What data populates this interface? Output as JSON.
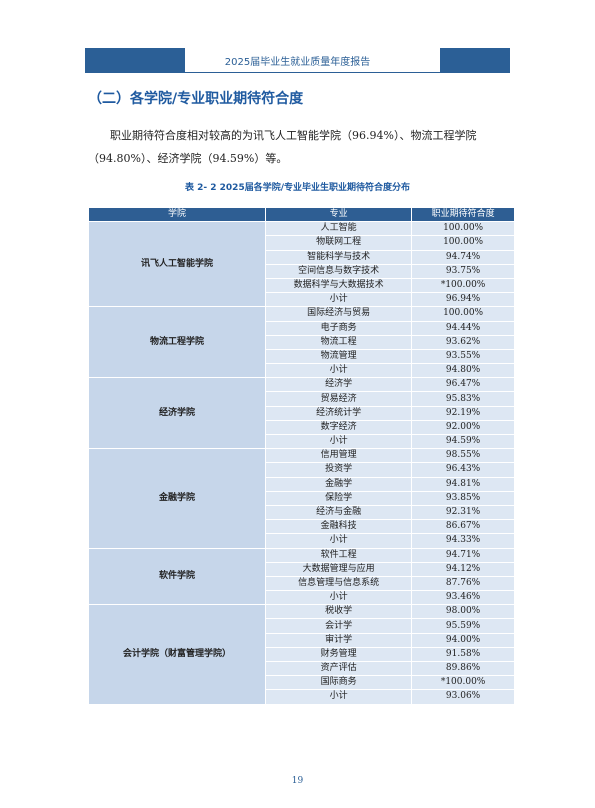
{
  "header": {
    "title": "2025届毕业生就业质量年度报告"
  },
  "section": {
    "heading": "（二）各学院/专业职业期待符合度"
  },
  "paragraph": "职业期待符合度相对较高的为讯飞人工智能学院（96.94%）、物流工程学院（94.80%）、经济学院（94.59%）等。",
  "table": {
    "caption": "表 2- 2  2025届各学院/专业毕业生职业期待符合度分布",
    "columns": [
      "学院",
      "专业",
      "职业期待符合度"
    ],
    "groups": [
      {
        "college": "讯飞人工智能学院",
        "rows": [
          [
            "人工智能",
            "100.00%"
          ],
          [
            "物联网工程",
            "100.00%"
          ],
          [
            "智能科学与技术",
            "94.74%"
          ],
          [
            "空间信息与数字技术",
            "93.75%"
          ],
          [
            "数据科学与大数据技术",
            "*100.00%"
          ],
          [
            "小计",
            "96.94%"
          ]
        ]
      },
      {
        "college": "物流工程学院",
        "rows": [
          [
            "国际经济与贸易",
            "100.00%"
          ],
          [
            "电子商务",
            "94.44%"
          ],
          [
            "物流工程",
            "93.62%"
          ],
          [
            "物流管理",
            "93.55%"
          ],
          [
            "小计",
            "94.80%"
          ]
        ]
      },
      {
        "college": "经济学院",
        "rows": [
          [
            "经济学",
            "96.47%"
          ],
          [
            "贸易经济",
            "95.83%"
          ],
          [
            "经济统计学",
            "92.19%"
          ],
          [
            "数字经济",
            "92.00%"
          ],
          [
            "小计",
            "94.59%"
          ]
        ]
      },
      {
        "college": "金融学院",
        "rows": [
          [
            "信用管理",
            "98.55%"
          ],
          [
            "投资学",
            "96.43%"
          ],
          [
            "金融学",
            "94.81%"
          ],
          [
            "保险学",
            "93.85%"
          ],
          [
            "经济与金融",
            "92.31%"
          ],
          [
            "金融科技",
            "86.67%"
          ],
          [
            "小计",
            "94.33%"
          ]
        ]
      },
      {
        "college": "软件学院",
        "rows": [
          [
            "软件工程",
            "94.71%"
          ],
          [
            "大数据管理与应用",
            "94.12%"
          ],
          [
            "信息管理与信息系统",
            "87.76%"
          ],
          [
            "小计",
            "93.46%"
          ]
        ]
      },
      {
        "college": "会计学院（财富管理学院）",
        "rows": [
          [
            "税收学",
            "98.00%"
          ],
          [
            "会计学",
            "95.59%"
          ],
          [
            "审计学",
            "94.00%"
          ],
          [
            "财务管理",
            "91.58%"
          ],
          [
            "资产评估",
            "89.86%"
          ],
          [
            "国际商务",
            "*100.00%"
          ],
          [
            "小计",
            "93.06%"
          ]
        ]
      }
    ]
  },
  "page_number": "19"
}
